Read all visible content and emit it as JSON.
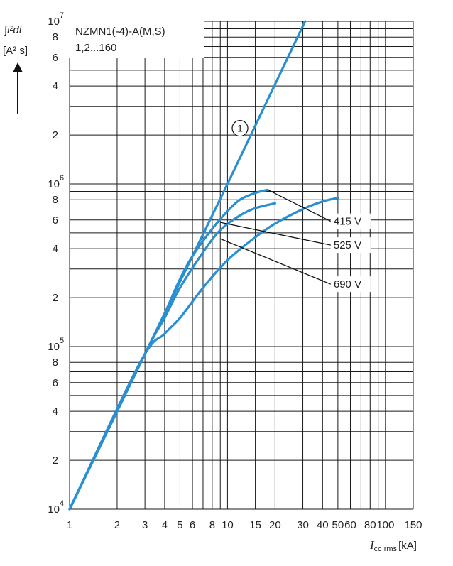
{
  "chart_data": {
    "type": "line",
    "x_scale": "log",
    "y_scale": "log",
    "xlim": [
      1,
      150
    ],
    "ylim": [
      10000,
      10000000
    ],
    "grid": true,
    "title_lines": [
      "NZMN1(-4)-A(M,S)",
      "1,2...160"
    ],
    "ylabel_lines": [
      "∫i²dt",
      "[A² s]"
    ],
    "xlabel": {
      "symbol": "I",
      "subscript": "cc rms",
      "unit": "[kA]"
    },
    "x_ticks": [
      {
        "v": 1,
        "t": "1"
      },
      {
        "v": 2,
        "t": "2"
      },
      {
        "v": 3,
        "t": "3"
      },
      {
        "v": 4,
        "t": "4"
      },
      {
        "v": 5,
        "t": "5"
      },
      {
        "v": 6,
        "t": "6"
      },
      {
        "v": 8,
        "t": "8"
      },
      {
        "v": 10,
        "t": "10"
      },
      {
        "v": 15,
        "t": "15"
      },
      {
        "v": 20,
        "t": "20"
      },
      {
        "v": 30,
        "t": "30"
      },
      {
        "v": 40,
        "t": "40"
      },
      {
        "v": 50,
        "t": "50"
      },
      {
        "v": 60,
        "t": "60"
      },
      {
        "v": 80,
        "t": "80"
      },
      {
        "v": 100,
        "t": "100"
      },
      {
        "v": 150,
        "t": "150"
      }
    ],
    "y_ticks": [
      {
        "v": 10000,
        "base": "10",
        "exp": "4"
      },
      {
        "v": 20000,
        "t": "2"
      },
      {
        "v": 40000,
        "t": "4"
      },
      {
        "v": 60000,
        "t": "6"
      },
      {
        "v": 80000,
        "t": "8"
      },
      {
        "v": 100000,
        "base": "10",
        "exp": "5"
      },
      {
        "v": 200000,
        "t": "2"
      },
      {
        "v": 400000,
        "t": "4"
      },
      {
        "v": 600000,
        "t": "6"
      },
      {
        "v": 800000,
        "t": "8"
      },
      {
        "v": 1000000,
        "base": "10",
        "exp": "6"
      },
      {
        "v": 2000000,
        "t": "2"
      },
      {
        "v": 4000000,
        "t": "4"
      },
      {
        "v": 6000000,
        "t": "6"
      },
      {
        "v": 8000000,
        "t": "8"
      },
      {
        "v": 10000000,
        "base": "10",
        "exp": "7"
      }
    ],
    "x_grid": [
      1,
      2,
      3,
      4,
      5,
      6,
      7,
      8,
      9,
      10,
      15,
      20,
      30,
      40,
      50,
      60,
      70,
      80,
      90,
      100,
      150
    ],
    "y_grid": [
      10000,
      20000,
      30000,
      40000,
      50000,
      60000,
      70000,
      80000,
      90000,
      100000,
      200000,
      300000,
      400000,
      500000,
      600000,
      700000,
      800000,
      900000,
      1000000,
      2000000,
      3000000,
      4000000,
      5000000,
      6000000,
      7000000,
      8000000,
      9000000,
      10000000
    ],
    "series": [
      {
        "name": "①",
        "points": [
          [
            1,
            10000
          ],
          [
            10,
            1000000
          ],
          [
            31,
            10000000
          ]
        ]
      },
      {
        "name": "415 V",
        "points": [
          [
            1,
            10000
          ],
          [
            3,
            90000
          ],
          [
            4,
            160000
          ],
          [
            5,
            260000
          ],
          [
            6,
            360000
          ],
          [
            8,
            530000
          ],
          [
            10,
            680000
          ],
          [
            12,
            800000
          ],
          [
            15,
            880000
          ],
          [
            18,
            920000
          ]
        ]
      },
      {
        "name": "525 V",
        "points": [
          [
            1,
            10000
          ],
          [
            3,
            90000
          ],
          [
            4,
            150000
          ],
          [
            5,
            230000
          ],
          [
            7,
            380000
          ],
          [
            9,
            520000
          ],
          [
            12,
            640000
          ],
          [
            15,
            710000
          ],
          [
            20,
            760000
          ]
        ]
      },
      {
        "name": "690 V",
        "points": [
          [
            1,
            10000
          ],
          [
            2.8,
            80000
          ],
          [
            4,
            120000
          ],
          [
            5,
            150000
          ],
          [
            7,
            230000
          ],
          [
            10,
            340000
          ],
          [
            15,
            470000
          ],
          [
            20,
            570000
          ],
          [
            30,
            700000
          ],
          [
            40,
            780000
          ],
          [
            50,
            820000
          ]
        ]
      }
    ],
    "annotations": [
      {
        "text": "415 V",
        "x": 50,
        "y": 560000,
        "pointer": [
          18,
          920000
        ]
      },
      {
        "text": "525 V",
        "x": 50,
        "y": 400000,
        "pointer": [
          9,
          580000
        ]
      },
      {
        "text": "690 V",
        "x": 50,
        "y": 230000,
        "pointer": [
          9,
          460000
        ]
      },
      {
        "text": "①",
        "x": 12,
        "y": 2200000
      }
    ],
    "colors": {
      "curve": "#2a8fd0",
      "grid": "#1a1a1a",
      "text": "#222222"
    }
  }
}
